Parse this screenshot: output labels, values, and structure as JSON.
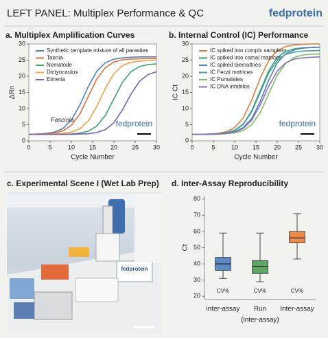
{
  "header": {
    "title": "LEFT PANEL: Multiplex Performance & QC",
    "logo": "fedprotein"
  },
  "photo": {
    "title": "c. Experimental Scene I (Wet Lab Prep)",
    "box_label": "fedprotein"
  },
  "chart_data": [
    {
      "type": "line",
      "title": "a. Multiplex Amplification Curves",
      "xlabel": "Cycle Number",
      "ylabel": "ΔRn",
      "annotation": "Fasciola",
      "watermark": "fedprotein",
      "legend": "upper left",
      "grid": false,
      "xlim": [
        0,
        30
      ],
      "ylim": [
        0,
        30
      ],
      "xticks": [
        0,
        5,
        10,
        15,
        20,
        25,
        30
      ],
      "yticks": [
        0,
        5,
        10,
        15,
        20,
        25,
        30
      ],
      "x": [
        0,
        2,
        4,
        6,
        8,
        10,
        12,
        14,
        16,
        18,
        20,
        22,
        24,
        26,
        28,
        30
      ],
      "series": [
        {
          "name": "Synthetic template mixture of all parasites",
          "color": "#4a7fc1",
          "values": [
            2.0,
            2.1,
            2.3,
            2.7,
            3.8,
            6.4,
            11.1,
            16.9,
            21.6,
            24.2,
            25.3,
            25.7,
            25.9,
            26.0,
            26.0,
            26.0
          ]
        },
        {
          "name": "Taenia",
          "color": "#e0703a",
          "values": [
            2.0,
            2.1,
            2.2,
            2.4,
            3.1,
            4.8,
            8.3,
            13.8,
            19.2,
            22.7,
            24.4,
            25.1,
            25.3,
            25.4,
            25.5,
            25.5
          ]
        },
        {
          "name": "Nematode",
          "color": "#3aa56b",
          "values": [
            2.0,
            2.0,
            2.0,
            2.0,
            2.0,
            2.1,
            2.4,
            3.0,
            4.6,
            7.9,
            13.0,
            18.1,
            21.4,
            23.0,
            23.6,
            23.8
          ]
        },
        {
          "name": "Dictyocaulus",
          "color": "#f0a040",
          "values": [
            2.0,
            2.0,
            2.0,
            2.1,
            2.3,
            2.7,
            3.7,
            6.2,
            10.7,
            16.3,
            20.8,
            23.3,
            24.3,
            24.7,
            24.9,
            25.0
          ]
        },
        {
          "name": "Eimeria",
          "color": "#7b5fb5",
          "values": [
            2.0,
            2.0,
            2.0,
            2.0,
            2.0,
            2.0,
            2.1,
            2.2,
            2.6,
            3.5,
            5.6,
            9.6,
            14.4,
            18.4,
            20.5,
            21.4
          ]
        }
      ]
    },
    {
      "type": "line",
      "title": "b. Internal Control (IC) Performance",
      "xlabel": "Cycle Number",
      "ylabel": "IC Ct",
      "watermark": "fedprotein",
      "legend": "upper left",
      "grid": false,
      "xlim": [
        0,
        30
      ],
      "ylim": [
        0,
        30
      ],
      "xticks": [
        0,
        5,
        10,
        15,
        20,
        25,
        30
      ],
      "yticks": [
        0,
        5,
        10,
        15,
        20,
        25,
        30
      ],
      "x": [
        0,
        2,
        4,
        6,
        8,
        10,
        12,
        14,
        16,
        18,
        20,
        22,
        24,
        26,
        28,
        30
      ],
      "series": [
        {
          "name": "IC spiked into complx samplexs",
          "color": "#e07a3a",
          "values": [
            2.0,
            2.0,
            2.1,
            2.3,
            2.8,
            4.1,
            7.1,
            12.6,
            19.4,
            24.9,
            27.9,
            29.2,
            29.7,
            29.9,
            30.0,
            30.0
          ]
        },
        {
          "name": "IC spiked into camal matrices",
          "color": "#3aa56b",
          "values": [
            2.0,
            2.0,
            2.1,
            2.2,
            2.5,
            3.3,
            5.2,
            9.3,
            15.5,
            21.7,
            25.8,
            27.7,
            28.5,
            28.8,
            28.9,
            29.0
          ]
        },
        {
          "name": "IC spiked biemaltries",
          "color": "#4a7fc1",
          "values": [
            2.0,
            2.0,
            2.0,
            2.1,
            2.3,
            2.8,
            4.1,
            6.9,
            12.2,
            18.8,
            24.1,
            27.0,
            28.2,
            28.7,
            28.9,
            29.0
          ]
        },
        {
          "name": "IC Fecal matrices",
          "color": "#3aa0a0",
          "values": [
            2.0,
            2.0,
            2.1,
            2.2,
            2.5,
            3.2,
            5.1,
            9.0,
            15.0,
            21.0,
            24.9,
            26.8,
            27.5,
            27.8,
            27.9,
            28.0
          ]
        },
        {
          "name": "IC Pumalates",
          "color": "#7bbf5a",
          "values": [
            2.0,
            2.0,
            2.0,
            2.0,
            2.2,
            2.5,
            3.2,
            5.0,
            8.7,
            14.5,
            20.3,
            24.0,
            25.8,
            26.6,
            26.8,
            26.9
          ]
        },
        {
          "name": "IC DNA inhibilos",
          "color": "#8a6fc0",
          "values": [
            2.0,
            2.0,
            2.0,
            2.1,
            2.3,
            2.7,
            3.8,
            6.4,
            11.1,
            16.9,
            21.6,
            24.2,
            25.3,
            25.7,
            25.9,
            26.0
          ]
        }
      ]
    },
    {
      "type": "box",
      "title": "d. Inter-Assay Reproducibility",
      "ylabel": "Ct",
      "xlabel": "(inter-assay)",
      "grid": false,
      "ylim": [
        18,
        82
      ],
      "yticks": [
        20,
        30,
        40,
        50,
        60,
        70,
        80
      ],
      "categories": [
        "inter-assay",
        "Run",
        "Inter-assay"
      ],
      "box_labels": [
        "CV%",
        "CV%",
        "CV%"
      ],
      "boxes": [
        {
          "color": "#5b8ac6",
          "whislo": 31,
          "q1": 36,
          "med": 40,
          "q3": 44,
          "whishi": 59
        },
        {
          "color": "#5aaa64",
          "whislo": 29,
          "q1": 34,
          "med": 38.5,
          "q3": 42,
          "whishi": 59
        },
        {
          "color": "#ee8a45",
          "whislo": 43,
          "q1": 53,
          "med": 56,
          "q3": 60,
          "whishi": 71
        }
      ]
    }
  ]
}
